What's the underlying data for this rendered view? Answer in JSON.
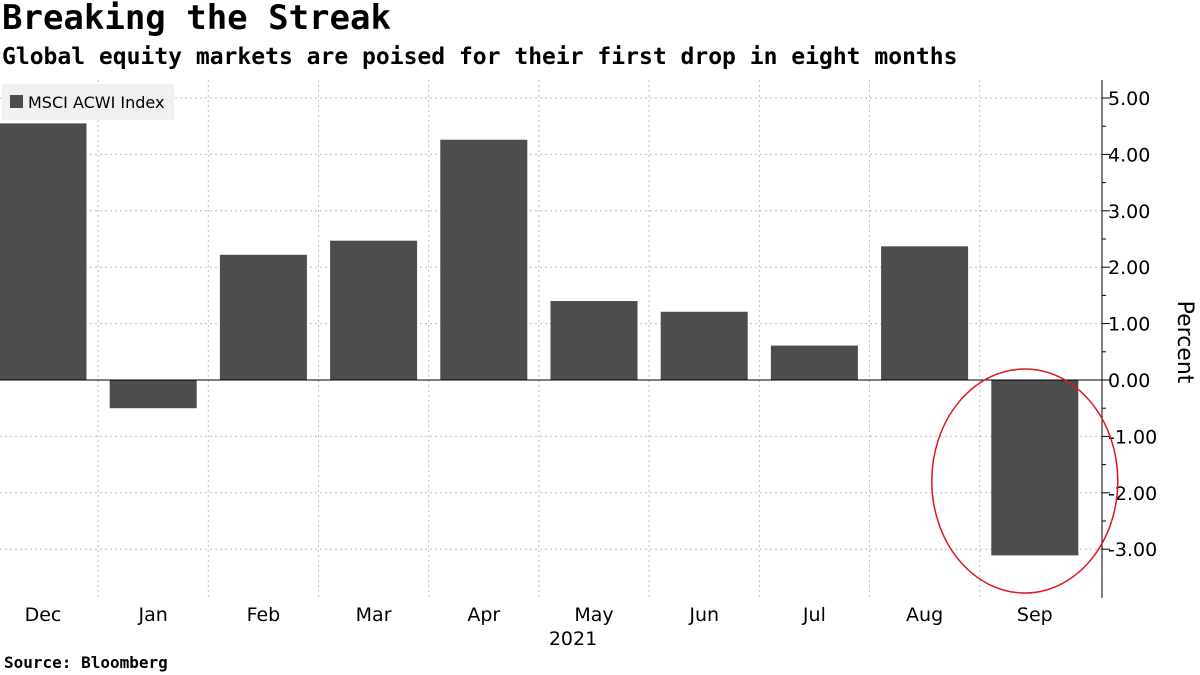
{
  "header": {
    "title": "Breaking the Streak",
    "subtitle": "Global equity markets are poised for their first drop in eight months"
  },
  "footer": {
    "source": "Source: Bloomberg"
  },
  "chart_data": {
    "type": "bar",
    "categories": [
      "Dec",
      "Jan",
      "Feb",
      "Mar",
      "Apr",
      "May",
      "Jun",
      "Jul",
      "Aug",
      "Sep"
    ],
    "series": [
      {
        "name": "MSCI ACWI Index",
        "values": [
          4.55,
          -0.5,
          2.22,
          2.47,
          4.26,
          1.4,
          1.21,
          0.61,
          2.37,
          -3.11
        ]
      }
    ],
    "year_label": "2021",
    "ylabel": "Percent",
    "ylim": [
      -3.8,
      5.3
    ],
    "yticks": [
      5,
      4,
      3,
      2,
      1,
      0,
      -1,
      -2,
      -3
    ],
    "ytick_labels": [
      "5.00",
      "4.00",
      "3.00",
      "2.00",
      "1.00",
      "0.00",
      "-1.00",
      "-2.00",
      "-3.00"
    ],
    "grid": true,
    "legend_position": "top-left",
    "bar_color": "#4d4d4d",
    "highlight": {
      "category": "Sep",
      "shape": "ellipse",
      "color": "#e0161d"
    }
  }
}
